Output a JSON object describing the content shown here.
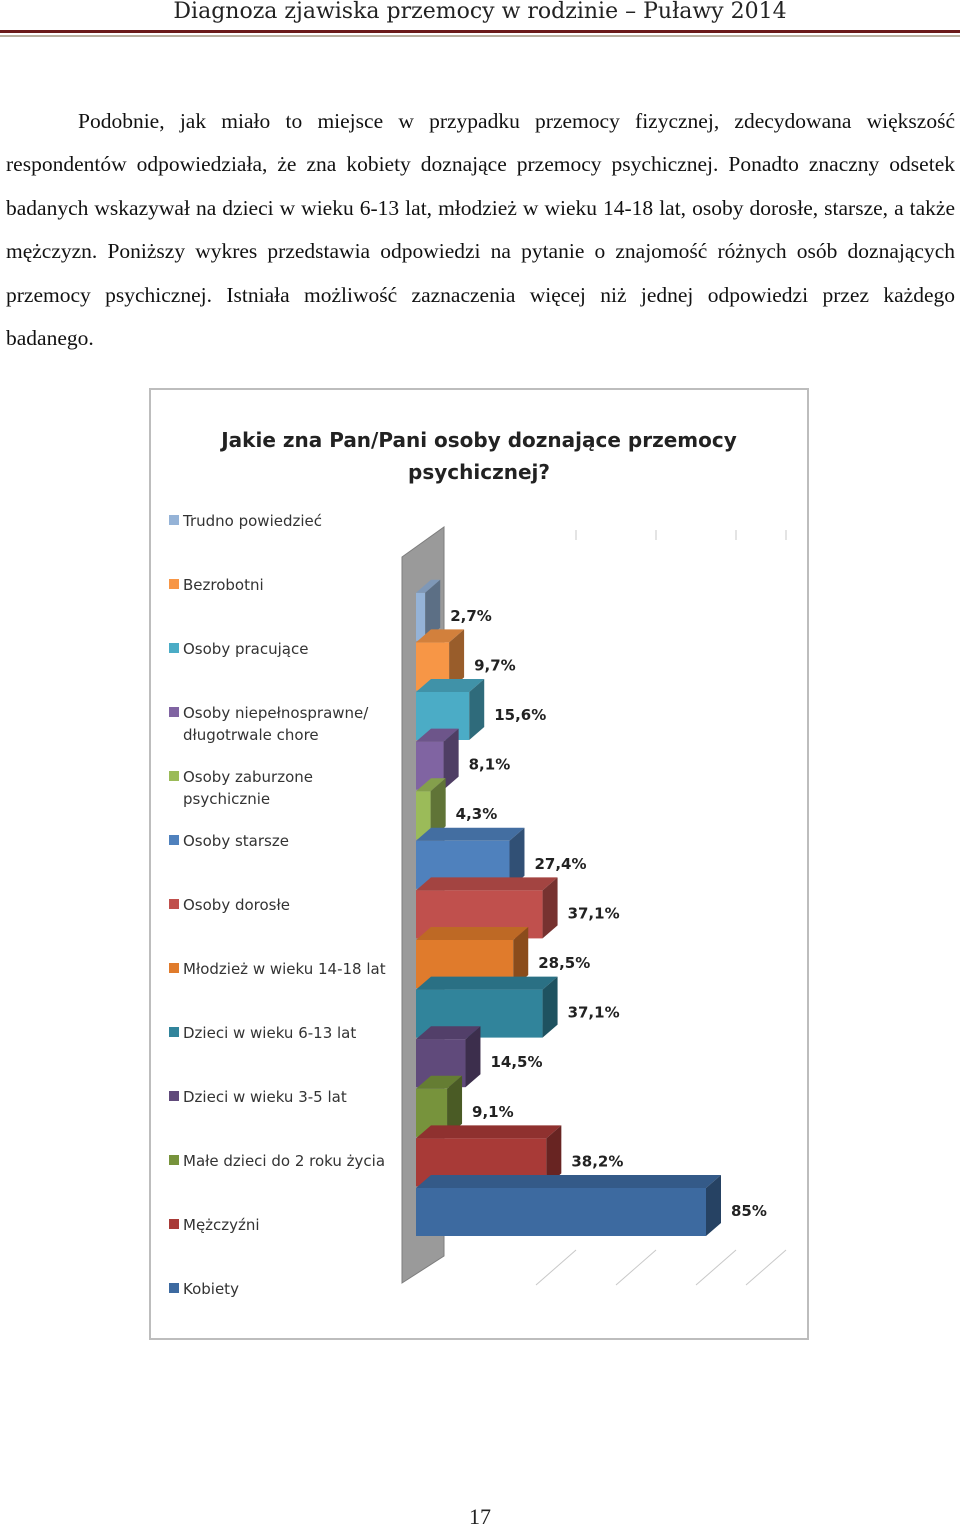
{
  "header": {
    "title": "Diagnoza zjawiska przemocy w rodzinie – Puławy 2014"
  },
  "intro_paragraph": "Podobnie, jak miało to miejsce w przypadku przemocy fizycznej, zdecydowana większość respondentów odpowiedziała, że zna kobiety doznające przemocy psychicznej. Ponadto znaczny odsetek badanych wskazywał na dzieci w wieku 6-13 lat, młodzież w wieku 14-18 lat, osoby dorosłe, starsze, a także mężczyzn. Poniższy wykres przedstawia odpowiedzi na pytanie o znajomość różnych osób doznających przemocy psychicznej. Istniała możliwość zaznaczenia więcej niż jednej odpowiedzi przez każdego badanego.",
  "chart_data": {
    "type": "bar",
    "orientation": "horizontal",
    "style": "3d",
    "title": "Jakie zna Pan/Pani osoby doznające przemocy\npsychicznej?",
    "legend_position": "left",
    "grid": false,
    "xlim": [
      0,
      100
    ],
    "categories": [
      "Trudno powiedzieć",
      "Bezrobotni",
      "Osoby pracujące",
      "Osoby niepełnosprawne/\ndługotrwale chore",
      "Osoby zaburzone\npsychicznie",
      "Osoby starsze",
      "Osoby dorosłe",
      "Młodzież w wieku 14-18 lat",
      "Dzieci w wieku 6-13 lat",
      "Dzieci w wieku 3-5 lat",
      "Małe dzieci do 2 roku życia",
      "Mężczyźni",
      "Kobiety"
    ],
    "values": [
      2.7,
      9.7,
      15.6,
      8.1,
      4.3,
      27.4,
      37.1,
      28.5,
      37.1,
      14.5,
      9.1,
      38.2,
      85
    ],
    "data_labels": [
      "2,7%",
      "9,7%",
      "15,6%",
      "8,1%",
      "4,3%",
      "27,4%",
      "37,1%",
      "28,5%",
      "37,1%",
      "14,5%",
      "9,1%",
      "38,2%",
      "85%"
    ],
    "colors": [
      "#95b3d7",
      "#f79646",
      "#4bacc6",
      "#8064a2",
      "#9bbb59",
      "#4f81bd",
      "#c0504d",
      "#e07b2c",
      "#31849b",
      "#604a7b",
      "#77933c",
      "#a83a37",
      "#3d6aa0"
    ]
  },
  "page_number": "17"
}
